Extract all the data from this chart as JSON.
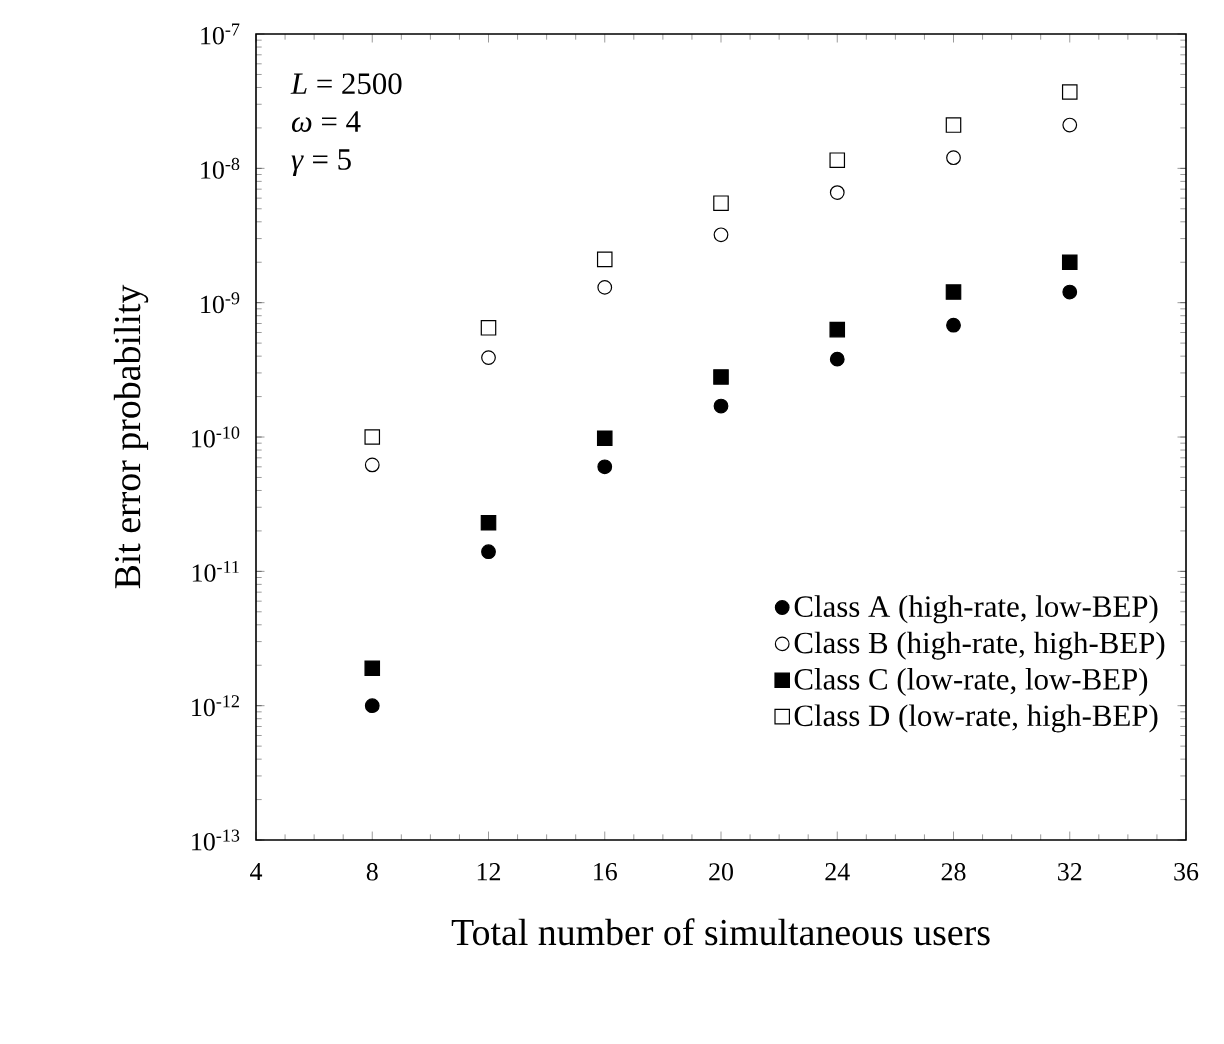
{
  "chart_data": {
    "type": "scatter",
    "xlabel": "Total number of simultaneous users",
    "ylabel": "Bit error probability",
    "x": [
      8,
      12,
      16,
      20,
      24,
      28,
      32
    ],
    "series": [
      {
        "name": "Class A (high-rate, low-BEP)",
        "color": "#000000",
        "marker": "circle",
        "values": [
          1e-12,
          1.4e-11,
          6e-11,
          1.7e-10,
          3.8e-10,
          6.8e-10,
          1.2e-09
        ]
      },
      {
        "name": "Class B (high-rate, high-BEP)",
        "color": "#ffffff",
        "marker": "circle",
        "values": [
          6.2e-11,
          3.9e-10,
          1.3e-09,
          3.2e-09,
          6.6e-09,
          1.2e-08,
          2.1e-08
        ]
      },
      {
        "name": "Class C (low-rate, low-BEP)",
        "color": "#000000",
        "marker": "square",
        "values": [
          1.9e-12,
          2.3e-11,
          9.8e-11,
          2.8e-10,
          6.3e-10,
          1.2e-09,
          2e-09
        ]
      },
      {
        "name": "Class D (low-rate, high-BEP)",
        "color": "#ffffff",
        "marker": "square",
        "values": [
          1e-10,
          6.5e-10,
          2.1e-09,
          5.5e-09,
          1.15e-08,
          2.1e-08,
          3.7e-08
        ]
      }
    ],
    "annotations": [
      "*L* = 2500",
      "*ω* = 4",
      "*γ* = 5"
    ],
    "log": "y",
    "legend": "bottom right",
    "grid": false,
    "xlim": [
      4,
      36
    ],
    "xticks": [
      4,
      8,
      12,
      16,
      20,
      24,
      28,
      32,
      36
    ],
    "ylim": [
      1e-13,
      1e-07
    ],
    "yticks": [
      {
        "value": 1e-13,
        "label": "10$^{-13}$"
      },
      {
        "value": 1e-12,
        "label": "10$^{-12}$"
      },
      {
        "value": 1e-11,
        "label": "10$^{-11}$"
      },
      {
        "value": 1e-10,
        "label": "10$^{-10}$"
      },
      {
        "value": 1e-09,
        "label": "10$^{-9}$"
      },
      {
        "value": 1e-08,
        "label": "10$^{-8}$"
      },
      {
        "value": 1e-07,
        "label": "10$^{-7}$"
      }
    ]
  }
}
